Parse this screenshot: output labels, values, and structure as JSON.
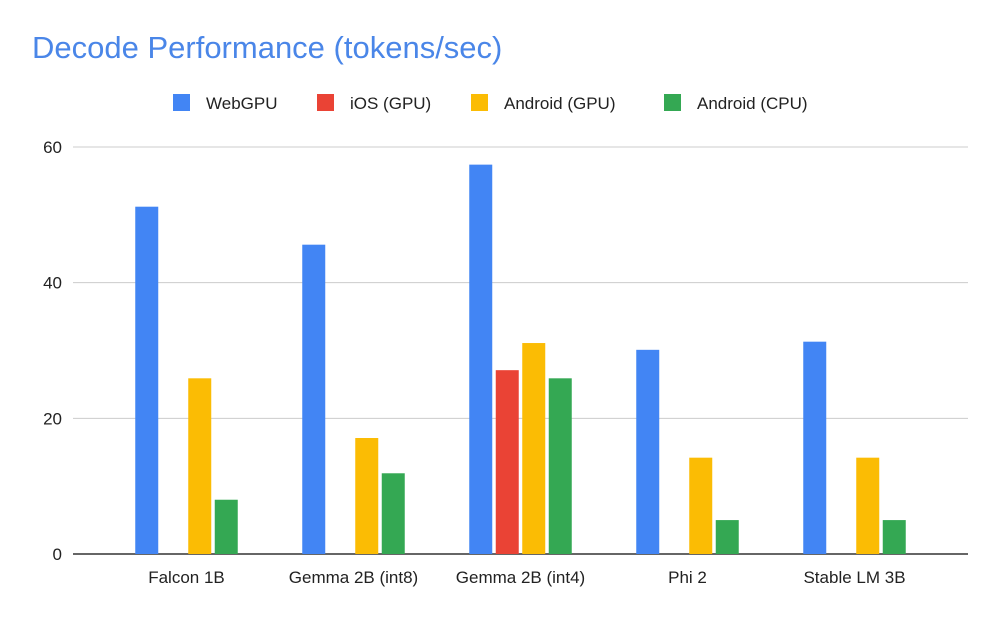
{
  "chart_data": {
    "type": "bar",
    "title": "Decode Performance (tokens/sec)",
    "xlabel": "",
    "ylabel": "",
    "categories": [
      "Falcon 1B",
      "Gemma 2B (int8)",
      "Gemma 2B (int4)",
      "Phi 2",
      "Stable LM 3B"
    ],
    "series": [
      {
        "name": "WebGPU",
        "color": "#4285f4",
        "values": [
          51.2,
          45.6,
          57.4,
          30.1,
          31.3
        ]
      },
      {
        "name": "iOS (GPU)",
        "color": "#ea4335",
        "values": [
          null,
          null,
          27.1,
          null,
          null
        ]
      },
      {
        "name": "Android (GPU)",
        "color": "#fbbc04",
        "values": [
          25.9,
          17.1,
          31.1,
          14.2,
          14.2
        ]
      },
      {
        "name": "Android (CPU)",
        "color": "#34a853",
        "values": [
          8.0,
          11.9,
          25.9,
          5.0,
          5.0
        ]
      }
    ],
    "ylim": [
      0,
      60
    ],
    "yticks": [
      0,
      20,
      40,
      60
    ],
    "grid": true,
    "legend": "top"
  }
}
